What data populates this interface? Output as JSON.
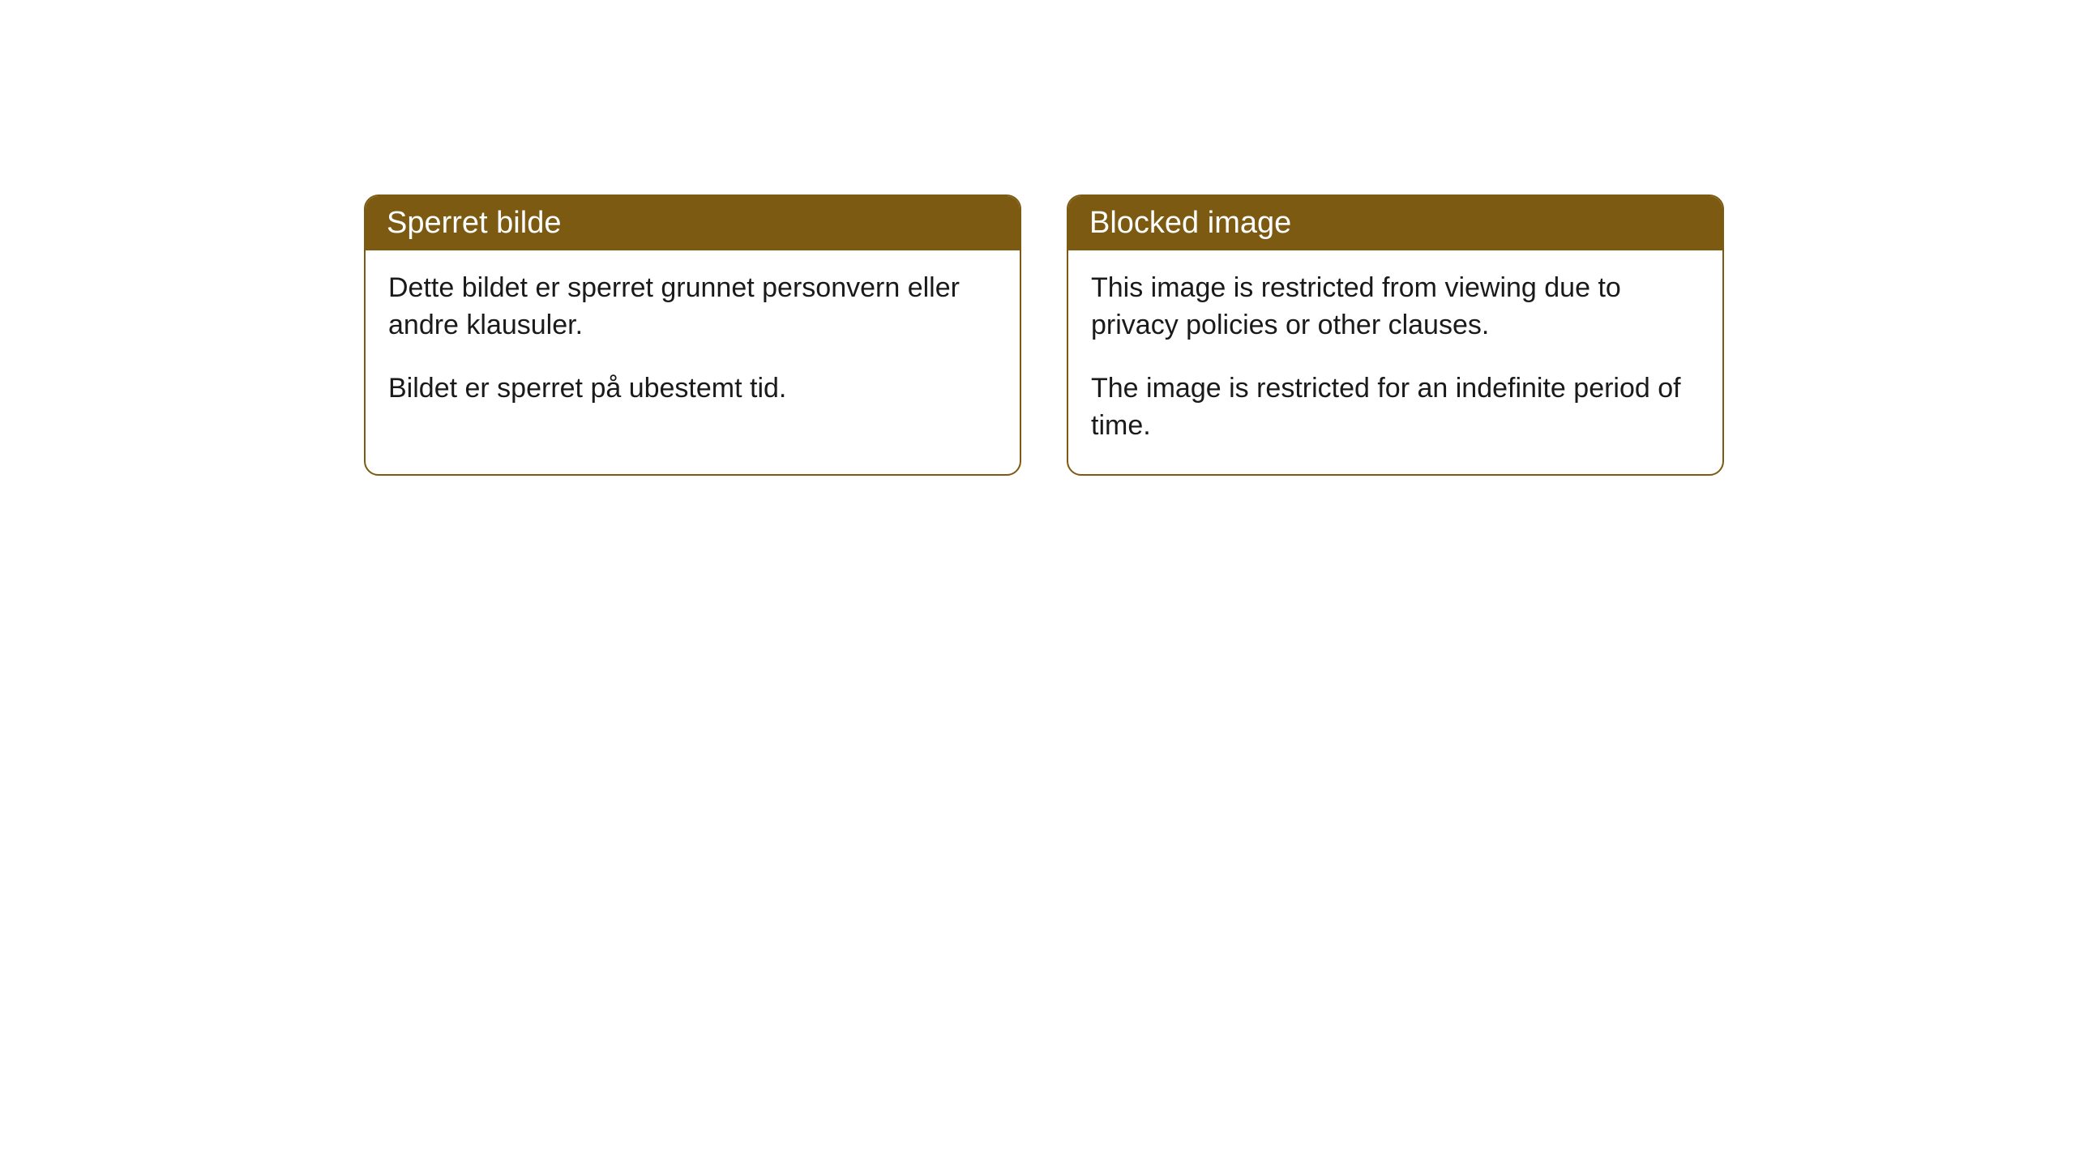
{
  "cards": [
    {
      "title": "Sperret bilde",
      "paragraph1": "Dette bildet er sperret grunnet personvern eller andre klausuler.",
      "paragraph2": "Bildet er sperret på ubestemt tid."
    },
    {
      "title": "Blocked image",
      "paragraph1": "This image is restricted from viewing due to privacy policies or other clauses.",
      "paragraph2": "The image is restricted for an indefinite period of time."
    }
  ],
  "styling": {
    "header_background": "#7c5a12",
    "header_text_color": "#ffffff",
    "border_color": "#7c5a12",
    "body_background": "#ffffff",
    "body_text_color": "#1a1a1a",
    "border_radius": 18,
    "header_fontsize": 38,
    "body_fontsize": 34
  }
}
